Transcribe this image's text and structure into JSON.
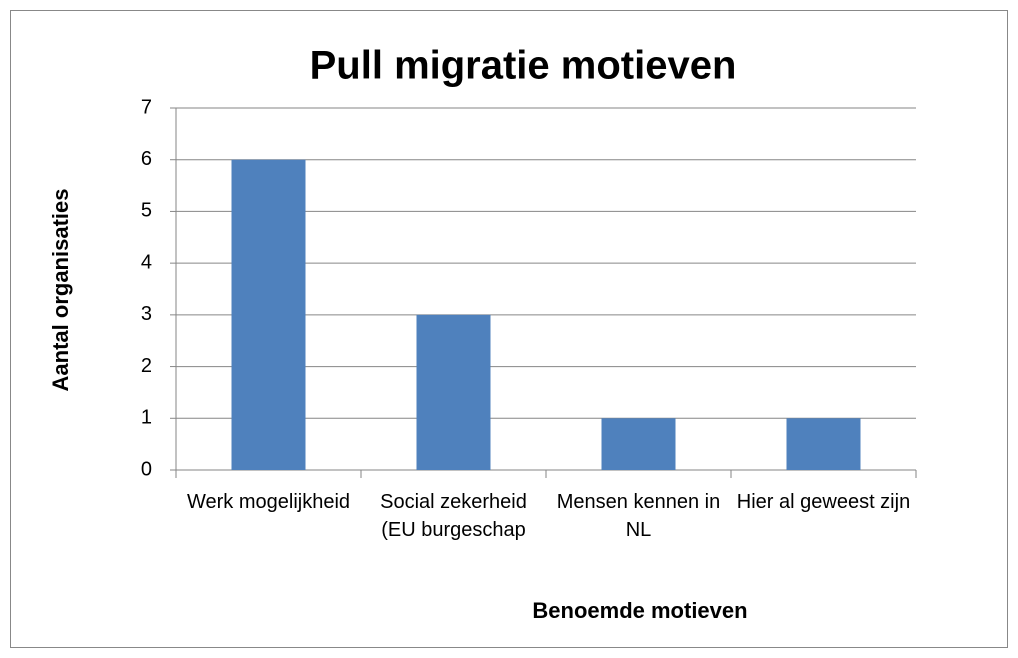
{
  "chart_data": {
    "type": "bar",
    "title": "Pull migratie motieven",
    "categories": [
      "Werk mogelijkheid",
      "Social zekerheid (EU burgeschap",
      "Mensen kennen in NL",
      "Hier al geweest zijn"
    ],
    "values": [
      6,
      3,
      1,
      1
    ],
    "color": "#4f81bd",
    "xlabel": "Benoemde motieven",
    "ylabel": "Aantal organisaties",
    "ylim": [
      0,
      7
    ],
    "yticks": [
      0,
      1,
      2,
      3,
      4,
      5,
      6,
      7
    ],
    "grid": true
  }
}
